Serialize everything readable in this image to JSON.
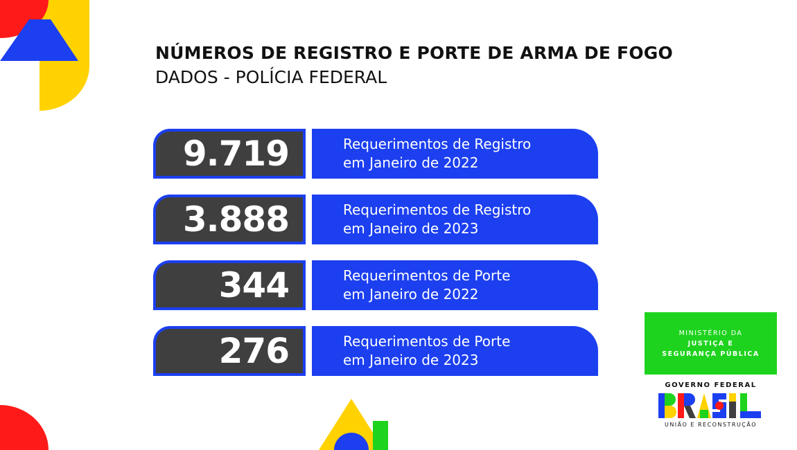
{
  "header": {
    "title": "NÚMEROS DE REGISTRO E PORTE DE ARMA DE FOGO",
    "subtitle": "DADOS - POLÍCIA FEDERAL"
  },
  "stats": [
    {
      "value": "9.719",
      "label_line1": "Requerimentos de Registro",
      "label_line2": "em Janeiro de 2022"
    },
    {
      "value": "3.888",
      "label_line1": "Requerimentos de Registro",
      "label_line2": "em Janeiro de 2023"
    },
    {
      "value": "344",
      "label_line1": "Requerimentos de Porte",
      "label_line2": "em Janeiro de 2022"
    },
    {
      "value": "276",
      "label_line1": "Requerimentos de Porte",
      "label_line2": "em Janeiro de 2023"
    }
  ],
  "ministry": {
    "line1": "MINISTÉRIO DA",
    "line2": "JUSTIÇA E",
    "line3": "SEGURANÇA PÚBLICA"
  },
  "government": {
    "title": "GOVERNO FEDERAL",
    "logo_word": "BRASIL",
    "tagline": "UNIÃO E RECONSTRUÇÃO"
  },
  "colors": {
    "blue": "#1c3ff0",
    "dark_gray": "#3f3f3f",
    "yellow": "#ffd200",
    "red": "#ff1a1a",
    "green": "#1ed31e"
  }
}
